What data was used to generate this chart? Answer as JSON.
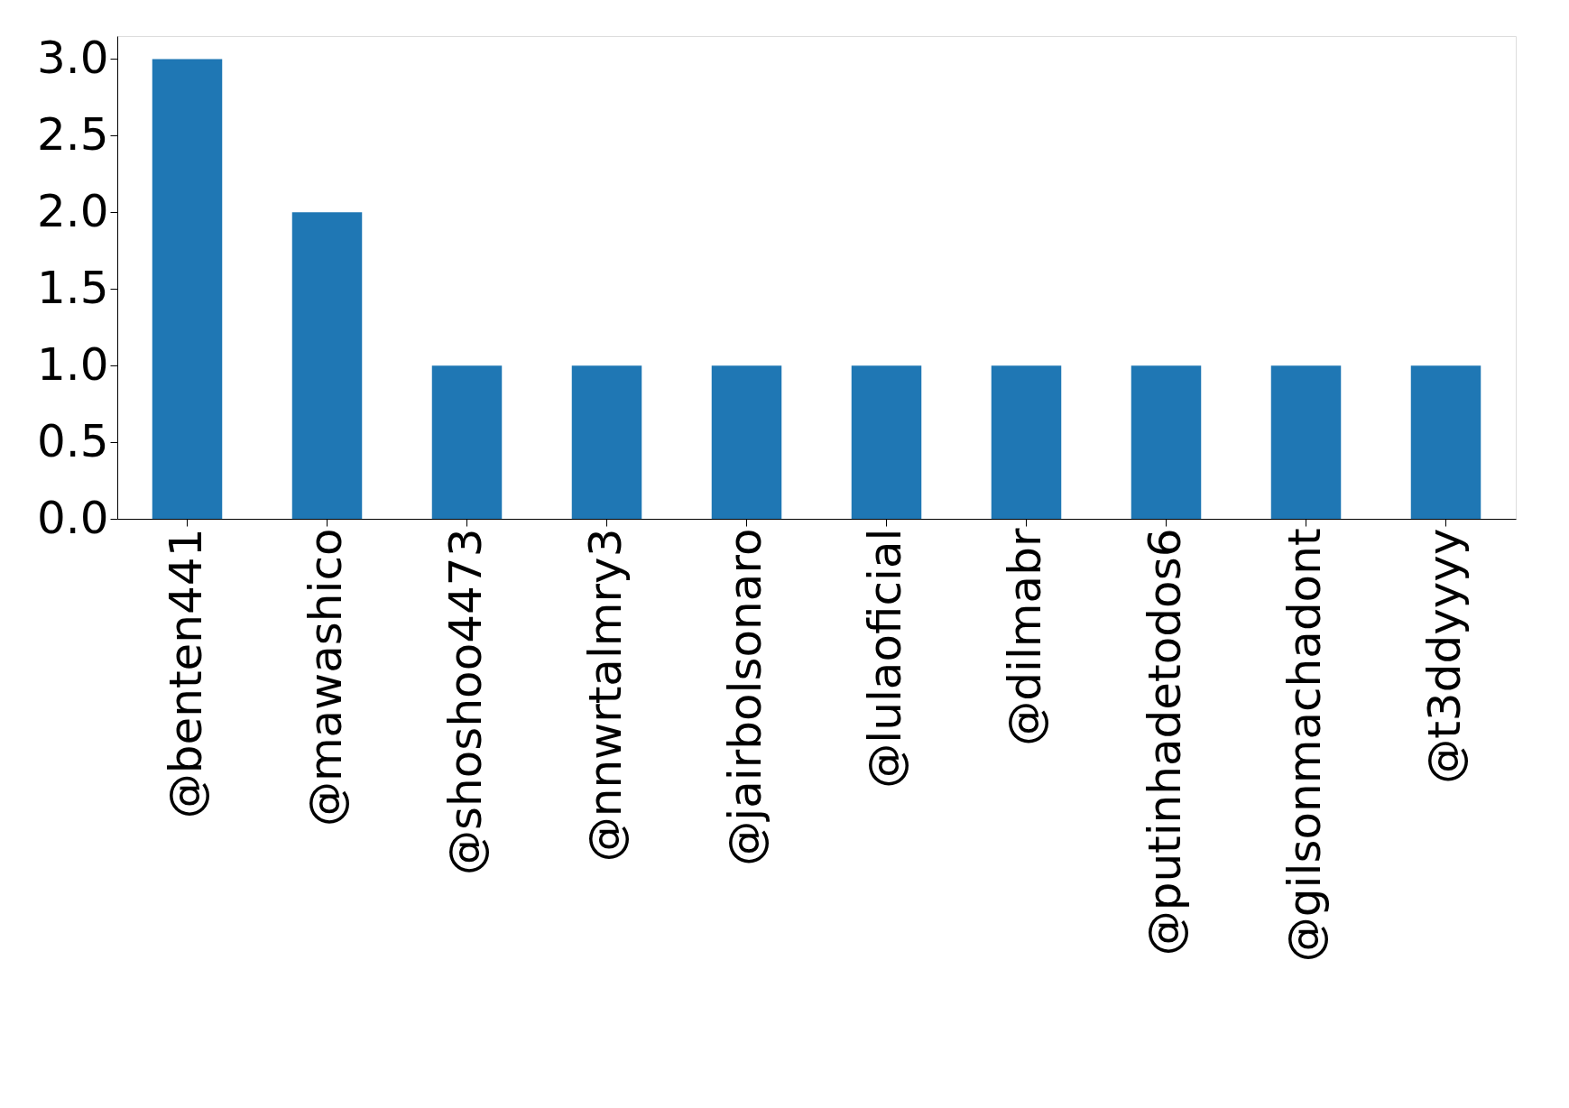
{
  "chart_data": {
    "type": "bar",
    "categories": [
      "@benten441",
      "@mawashico",
      "@shoshoo4473",
      "@nnwrtalmry3",
      "@jairbolsonaro",
      "@lulaoficial",
      "@dilmabr",
      "@putinhadetodos6",
      "@gilsonmachadont",
      "@t3ddyyyy"
    ],
    "values": [
      3,
      2,
      1,
      1,
      1,
      1,
      1,
      1,
      1,
      1
    ],
    "color": "#1f77b4",
    "ylim": [
      0,
      3.15
    ],
    "yticks": [
      {
        "value": 0,
        "label": "0.0"
      },
      {
        "value": 0.5,
        "label": "0.5"
      },
      {
        "value": 1,
        "label": "1.0"
      },
      {
        "value": 1.5,
        "label": "1.5"
      },
      {
        "value": 2,
        "label": "2.0"
      },
      {
        "value": 2.5,
        "label": "2.5"
      },
      {
        "value": 3,
        "label": "3.0"
      }
    ],
    "grid": false
  }
}
